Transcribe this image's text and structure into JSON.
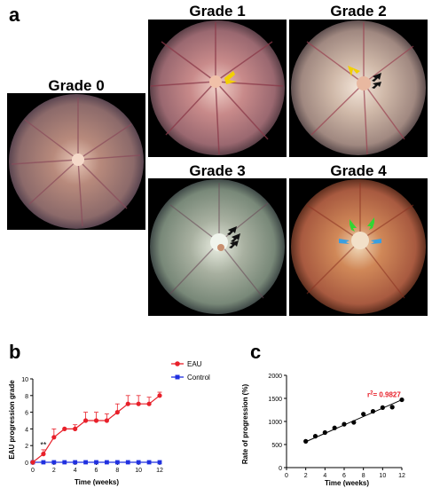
{
  "panels": {
    "a": "a",
    "b": "b",
    "c": "c"
  },
  "grades": [
    {
      "title": "Grade 0"
    },
    {
      "title": "Grade 1"
    },
    {
      "title": "Grade 2"
    },
    {
      "title": "Grade 3"
    },
    {
      "title": "Grade 4"
    }
  ],
  "colors": {
    "fundus_base": "#b08070",
    "arrow_yellow": "#f2d000",
    "arrow_black": "#111111",
    "arrow_green": "#33d633",
    "arrow_blue": "#3a9fe0",
    "eau_red": "#e8202a",
    "control_blue": "#2030e0"
  },
  "chart_data": [
    {
      "type": "line",
      "xlabel": "Time (weeks)",
      "ylabel": "EAU progression grade",
      "xlim": [
        0,
        12
      ],
      "ylim": [
        0,
        10
      ],
      "xticks": [
        0,
        2,
        4,
        6,
        8,
        10,
        12
      ],
      "yticks": [
        0,
        2,
        4,
        6,
        8,
        10
      ],
      "annotation": "**",
      "annotation_x": 1,
      "legend": "top-right",
      "series": [
        {
          "name": "EAU",
          "color": "#e8202a",
          "marker": "circle",
          "x": [
            0,
            1,
            2,
            3,
            4,
            5,
            6,
            7,
            8,
            9,
            10,
            11,
            12
          ],
          "y": [
            0,
            1,
            3,
            4,
            4,
            5,
            5,
            5,
            6,
            7,
            7,
            7,
            8
          ],
          "err": [
            0,
            0.5,
            1.0,
            0,
            0.5,
            1.0,
            1.0,
            0.8,
            1.0,
            1.0,
            1.0,
            0.8,
            0.4
          ]
        },
        {
          "name": "Control",
          "color": "#2030e0",
          "marker": "square",
          "x": [
            0,
            1,
            2,
            3,
            4,
            5,
            6,
            7,
            8,
            9,
            10,
            11,
            12
          ],
          "y": [
            0,
            0,
            0,
            0,
            0,
            0,
            0,
            0,
            0,
            0,
            0,
            0,
            0
          ],
          "err": [
            0,
            0,
            0,
            0,
            0,
            0,
            0,
            0,
            0,
            0,
            0,
            0,
            0
          ]
        }
      ]
    },
    {
      "type": "scatter",
      "xlabel": "Time (weeks)",
      "ylabel": "Rate of progression (%)",
      "xlim": [
        0,
        12
      ],
      "ylim": [
        0,
        2000
      ],
      "xticks": [
        0,
        2,
        4,
        6,
        8,
        10,
        12
      ],
      "yticks": [
        0,
        500,
        1000,
        1500,
        2000
      ],
      "annotation_prefix": "r",
      "annotation_sup": "2",
      "annotation_value": "= 0.9827",
      "annotation_x": 8.4,
      "annotation_y": 1530,
      "fit_line": [
        [
          2,
          560
        ],
        [
          12,
          1470
        ]
      ],
      "x": [
        2,
        3,
        4,
        5,
        6,
        7,
        8,
        9,
        10,
        11,
        12
      ],
      "y": [
        570,
        680,
        760,
        860,
        940,
        980,
        1160,
        1220,
        1300,
        1310,
        1470
      ]
    }
  ]
}
